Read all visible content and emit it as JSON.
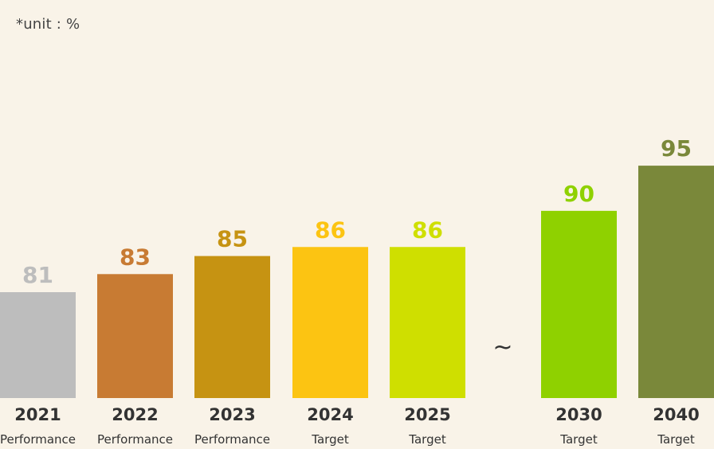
{
  "unit_note": "*unit : %",
  "break_symbol": "~",
  "chart_data": {
    "type": "bar",
    "title": "",
    "xlabel": "",
    "ylabel": "",
    "ylim": [
      70,
      100
    ],
    "grid": false,
    "categories": [
      "2021",
      "2022",
      "2023",
      "2024",
      "2025",
      "2030",
      "2040"
    ],
    "sublabels": [
      "Performance",
      "Performance",
      "Performance",
      "Target",
      "Target",
      "Target",
      "Target"
    ],
    "values": [
      81,
      83,
      85,
      86,
      86,
      90,
      95
    ],
    "colors": [
      "#bdbdbd",
      "#c87b33",
      "#c69312",
      "#fcc412",
      "#cfdf00",
      "#8fd100",
      "#7a883a"
    ],
    "value_label_colors": [
      "#bdbdbd",
      "#c87b33",
      "#c69312",
      "#fcc412",
      "#cfdf00",
      "#8fd100",
      "#7a883a"
    ],
    "axis_break_between": [
      "2025",
      "2030"
    ]
  }
}
